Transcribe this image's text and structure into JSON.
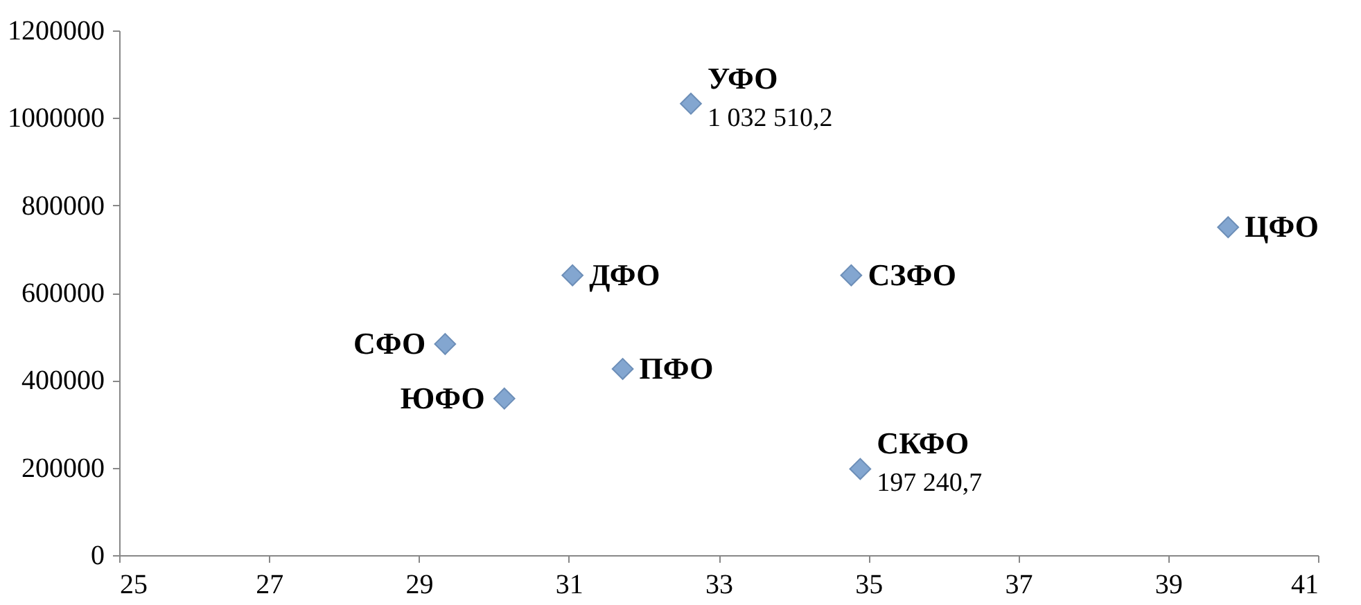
{
  "chart_data": {
    "type": "scatter",
    "x": [
      32.63,
      39.8,
      31.05,
      34.77,
      29.35,
      30.14,
      31.72,
      34.89
    ],
    "values": [
      1032510.2,
      750000,
      640000,
      640000,
      483000,
      358000,
      426000,
      197240.7
    ],
    "value_labels": [
      "1 032 510,2",
      null,
      null,
      null,
      null,
      null,
      null,
      "197 240,7"
    ],
    "color": "#4f81bd",
    "marker": "diamond",
    "annotations": [
      {
        "text": "УФО",
        "x": 32.63,
        "y": 1032510.2
      },
      {
        "text": "ЦФО",
        "x": 39.8,
        "y": 750000
      },
      {
        "text": "ДФО",
        "x": 31.05,
        "y": 640000
      },
      {
        "text": "СЗФО",
        "x": 34.77,
        "y": 640000
      },
      {
        "text": "СФО",
        "x": 29.35,
        "y": 483000
      },
      {
        "text": "ЮФО",
        "x": 30.14,
        "y": 358000
      },
      {
        "text": "ПФО",
        "x": 31.72,
        "y": 426000
      },
      {
        "text": "СКФО",
        "x": 34.89,
        "y": 197240.7
      }
    ],
    "xlim": [
      25,
      41
    ],
    "xticks": [
      25,
      27,
      29,
      31,
      33,
      35,
      37,
      39,
      41
    ],
    "ylim": [
      0,
      1200000
    ],
    "yticks": [
      0,
      200000,
      400000,
      600000,
      800000,
      1000000,
      1200000
    ],
    "grid": false
  }
}
